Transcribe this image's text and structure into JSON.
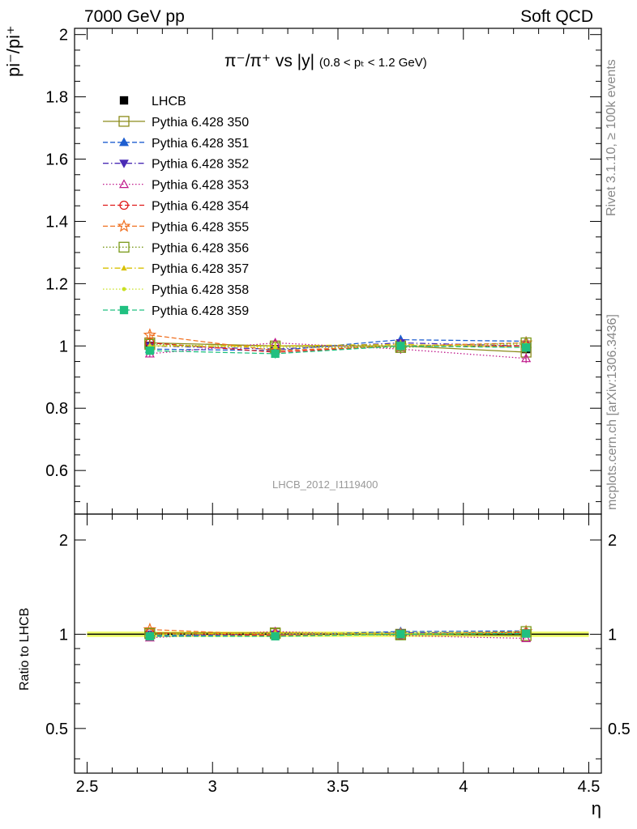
{
  "header": {
    "left": "7000 GeV pp",
    "right": "Soft QCD"
  },
  "side_labels": {
    "rivet": "Rivet 3.1.10, ≥ 100k events",
    "mcplots": "mcplots.cern.ch [arXiv:1306.3436]"
  },
  "plot_title": {
    "main": "π⁻/π⁺ vs |y|",
    "range": "(0.8 < pₜ < 1.2 GeV)"
  },
  "analysis_id": "LHCB_2012_I1119400",
  "colors": {
    "ref_band": "#f0ff6a",
    "ref_line": "#000000"
  },
  "chart_data": [
    {
      "type": "scatter",
      "panel": "main",
      "ylabel": "pi⁻/pi⁺",
      "xlim": [
        2.45,
        4.55
      ],
      "ylim": [
        0.46,
        2.02
      ],
      "y_ticks": [
        "0.6",
        "0.8",
        "1",
        "1.2",
        "1.4",
        "1.6",
        "1.8",
        "2"
      ],
      "legend_position": "top-left",
      "x": [
        2.75,
        3.25,
        3.75,
        4.25
      ],
      "x_bin_edges": [
        2.5,
        3.0,
        3.5,
        4.0,
        4.5
      ],
      "series": [
        {
          "name": "LHCB",
          "color": "#000000",
          "marker": "filled-square",
          "line": "none",
          "values": [
            1.0,
            0.99,
            1.0,
            0.99
          ],
          "errors": [
            0.02,
            0.02,
            0.02,
            0.02
          ]
        },
        {
          "name": "Pythia 6.428 350",
          "color": "#8b8b1a",
          "marker": "open-square",
          "line": "solid",
          "values": [
            1.01,
            1.0,
            1.0,
            0.98
          ],
          "errors": [
            0.015,
            0.015,
            0.015,
            0.015
          ]
        },
        {
          "name": "Pythia 6.428 351",
          "color": "#1f5fd0",
          "marker": "filled-triangle-up",
          "line": "dashed",
          "values": [
            0.99,
            0.985,
            1.02,
            1.015
          ],
          "errors": [
            0.01,
            0.015,
            0.015,
            0.015
          ]
        },
        {
          "name": "Pythia 6.428 352",
          "color": "#4a2bb5",
          "marker": "filled-triangle-down",
          "line": "dashdot",
          "values": [
            1.0,
            0.99,
            1.01,
            1.0
          ],
          "errors": [
            0.01,
            0.015,
            0.015,
            0.015
          ]
        },
        {
          "name": "Pythia 6.428 353",
          "color": "#c0188b",
          "marker": "open-triangle-up",
          "line": "dotted",
          "values": [
            0.975,
            1.01,
            0.99,
            0.96
          ],
          "errors": [
            0.01,
            0.015,
            0.015,
            0.015
          ]
        },
        {
          "name": "Pythia 6.428 354",
          "color": "#e01a1a",
          "marker": "open-circle",
          "line": "dashed",
          "values": [
            1.01,
            0.98,
            1.0,
            1.0
          ],
          "errors": [
            0.01,
            0.015,
            0.015,
            0.015
          ]
        },
        {
          "name": "Pythia 6.428 355",
          "color": "#f07020",
          "marker": "open-star",
          "line": "dashed",
          "values": [
            1.035,
            0.985,
            1.0,
            1.01
          ],
          "errors": [
            0.01,
            0.015,
            0.015,
            0.015
          ]
        },
        {
          "name": "Pythia 6.428 356",
          "color": "#7a9a1a",
          "marker": "open-square",
          "line": "dotted",
          "values": [
            1.005,
            0.995,
            0.995,
            1.01
          ],
          "errors": [
            0.01,
            0.015,
            0.015,
            0.015
          ]
        },
        {
          "name": "Pythia 6.428 357",
          "color": "#d8c000",
          "marker": "small-triangle",
          "line": "dashdot",
          "values": [
            1.0,
            1.0,
            1.005,
            0.995
          ],
          "errors": [
            0.01,
            0.015,
            0.015,
            0.015
          ]
        },
        {
          "name": "Pythia 6.428 358",
          "color": "#c8e020",
          "marker": "small-dot",
          "line": "dotted",
          "values": [
            1.0,
            0.995,
            1.0,
            1.005
          ],
          "errors": [
            0.01,
            0.015,
            0.015,
            0.015
          ]
        },
        {
          "name": "Pythia 6.428 359",
          "color": "#20c080",
          "marker": "filled-square",
          "line": "dashed",
          "values": [
            0.985,
            0.975,
            1.0,
            0.995
          ],
          "errors": [
            0.01,
            0.015,
            0.015,
            0.015
          ]
        }
      ]
    },
    {
      "type": "scatter",
      "panel": "ratio",
      "ylabel": "Ratio to LHCB",
      "xlabel": "η",
      "xlim": [
        2.45,
        4.55
      ],
      "ylim": [
        0.36,
        2.42
      ],
      "y_scale": "log",
      "x_ticks": [
        "2.5",
        "3",
        "3.5",
        "4",
        "4.5"
      ],
      "y_ticks": [
        "0.5",
        "1",
        "2"
      ],
      "x": [
        2.75,
        3.25,
        3.75,
        4.25
      ],
      "reference_band": [
        0.98,
        1.02
      ],
      "series": [
        {
          "name": "Pythia 6.428 350",
          "values": [
            1.01,
            1.01,
            1.0,
            0.99
          ]
        },
        {
          "name": "Pythia 6.428 351",
          "values": [
            0.99,
            0.995,
            1.02,
            1.025
          ]
        },
        {
          "name": "Pythia 6.428 352",
          "values": [
            1.0,
            1.0,
            1.01,
            1.01
          ]
        },
        {
          "name": "Pythia 6.428 353",
          "values": [
            0.975,
            1.02,
            0.99,
            0.97
          ]
        },
        {
          "name": "Pythia 6.428 354",
          "values": [
            1.01,
            0.99,
            1.0,
            1.01
          ]
        },
        {
          "name": "Pythia 6.428 355",
          "values": [
            1.035,
            0.995,
            1.0,
            1.02
          ]
        },
        {
          "name": "Pythia 6.428 356",
          "values": [
            1.005,
            1.005,
            0.995,
            1.02
          ]
        },
        {
          "name": "Pythia 6.428 357",
          "values": [
            1.0,
            1.01,
            1.005,
            1.005
          ]
        },
        {
          "name": "Pythia 6.428 358",
          "values": [
            1.0,
            1.005,
            1.0,
            1.015
          ]
        },
        {
          "name": "Pythia 6.428 359",
          "values": [
            0.985,
            0.985,
            1.0,
            1.005
          ]
        }
      ]
    }
  ]
}
